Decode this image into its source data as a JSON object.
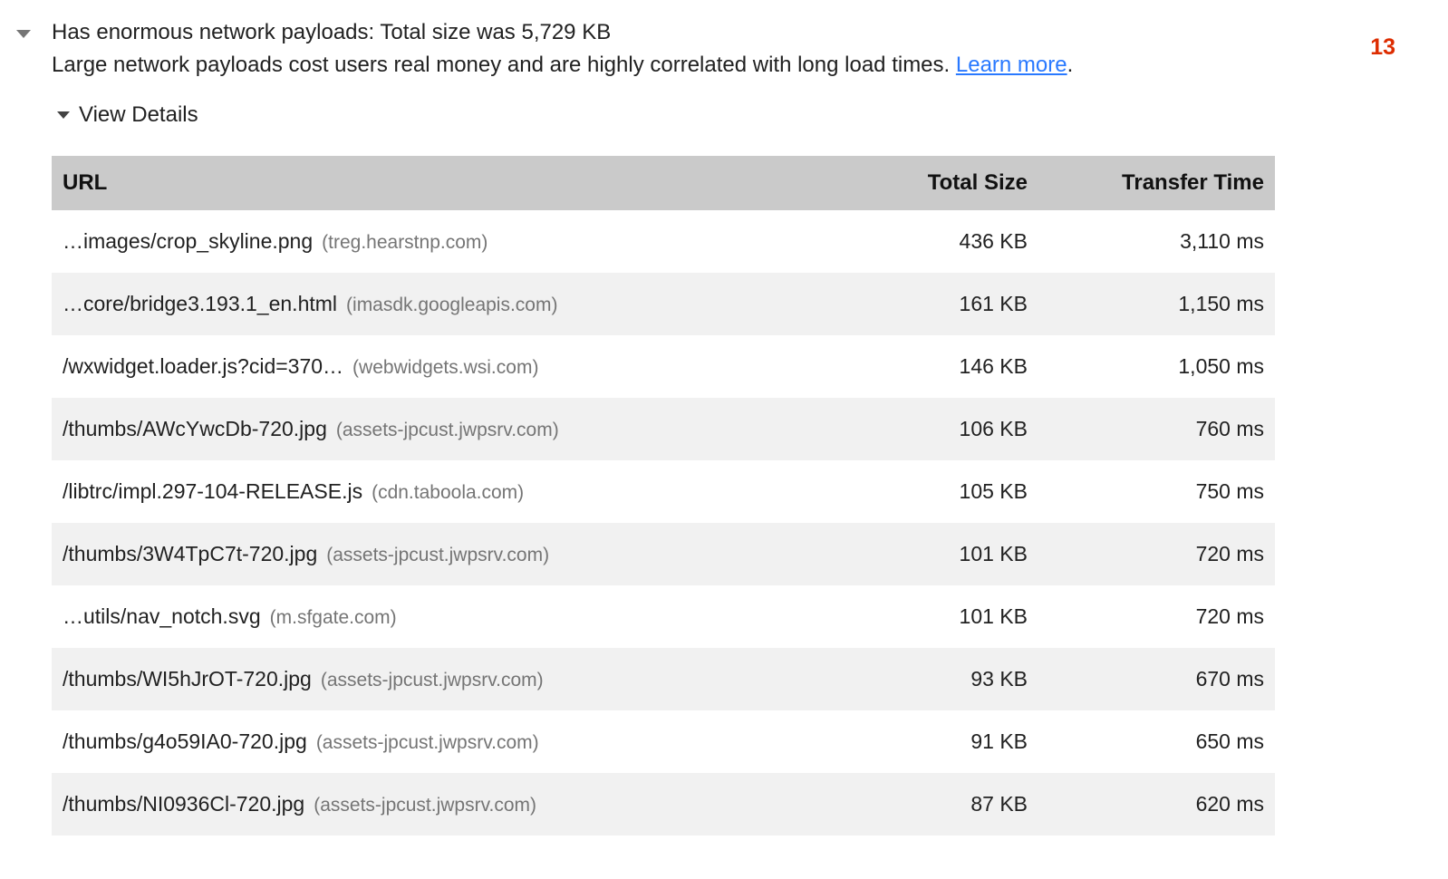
{
  "audit": {
    "title": "Has enormous network payloads: Total size was 5,729 KB",
    "score": "13",
    "description": "Large network payloads cost users real money and are highly correlated with long load times.",
    "learn_more_label": "Learn more",
    "after_link_text": ".",
    "view_details_label": "View Details"
  },
  "table": {
    "headers": {
      "url": "URL",
      "size": "Total Size",
      "time": "Transfer Time"
    },
    "rows": [
      {
        "url": "…images/crop_skyline.png",
        "domain": "(treg.hearstnp.com)",
        "size": "436 KB",
        "time": "3,110 ms"
      },
      {
        "url": "…core/bridge3.193.1_en.html",
        "domain": "(imasdk.googleapis.com)",
        "size": "161 KB",
        "time": "1,150 ms"
      },
      {
        "url": "/wxwidget.loader.js?cid=370…",
        "domain": "(webwidgets.wsi.com)",
        "size": "146 KB",
        "time": "1,050 ms"
      },
      {
        "url": "/thumbs/AWcYwcDb-720.jpg",
        "domain": "(assets-jpcust.jwpsrv.com)",
        "size": "106 KB",
        "time": "760 ms"
      },
      {
        "url": "/libtrc/impl.297-104-RELEASE.js",
        "domain": "(cdn.taboola.com)",
        "size": "105 KB",
        "time": "750 ms"
      },
      {
        "url": "/thumbs/3W4TpC7t-720.jpg",
        "domain": "(assets-jpcust.jwpsrv.com)",
        "size": "101 KB",
        "time": "720 ms"
      },
      {
        "url": "…utils/nav_notch.svg",
        "domain": "(m.sfgate.com)",
        "size": "101 KB",
        "time": "720 ms"
      },
      {
        "url": "/thumbs/WI5hJrOT-720.jpg",
        "domain": "(assets-jpcust.jwpsrv.com)",
        "size": "93 KB",
        "time": "670 ms"
      },
      {
        "url": "/thumbs/g4o59IA0-720.jpg",
        "domain": "(assets-jpcust.jwpsrv.com)",
        "size": "91 KB",
        "time": "650 ms"
      },
      {
        "url": "/thumbs/NI0936Cl-720.jpg",
        "domain": "(assets-jpcust.jwpsrv.com)",
        "size": "87 KB",
        "time": "620 ms"
      }
    ]
  },
  "colors": {
    "score_red": "#dd2c00",
    "link_blue": "#2979ff",
    "header_bg": "#cacaca",
    "row_alt_bg": "#f1f1f1",
    "domain_gray": "#757575"
  }
}
